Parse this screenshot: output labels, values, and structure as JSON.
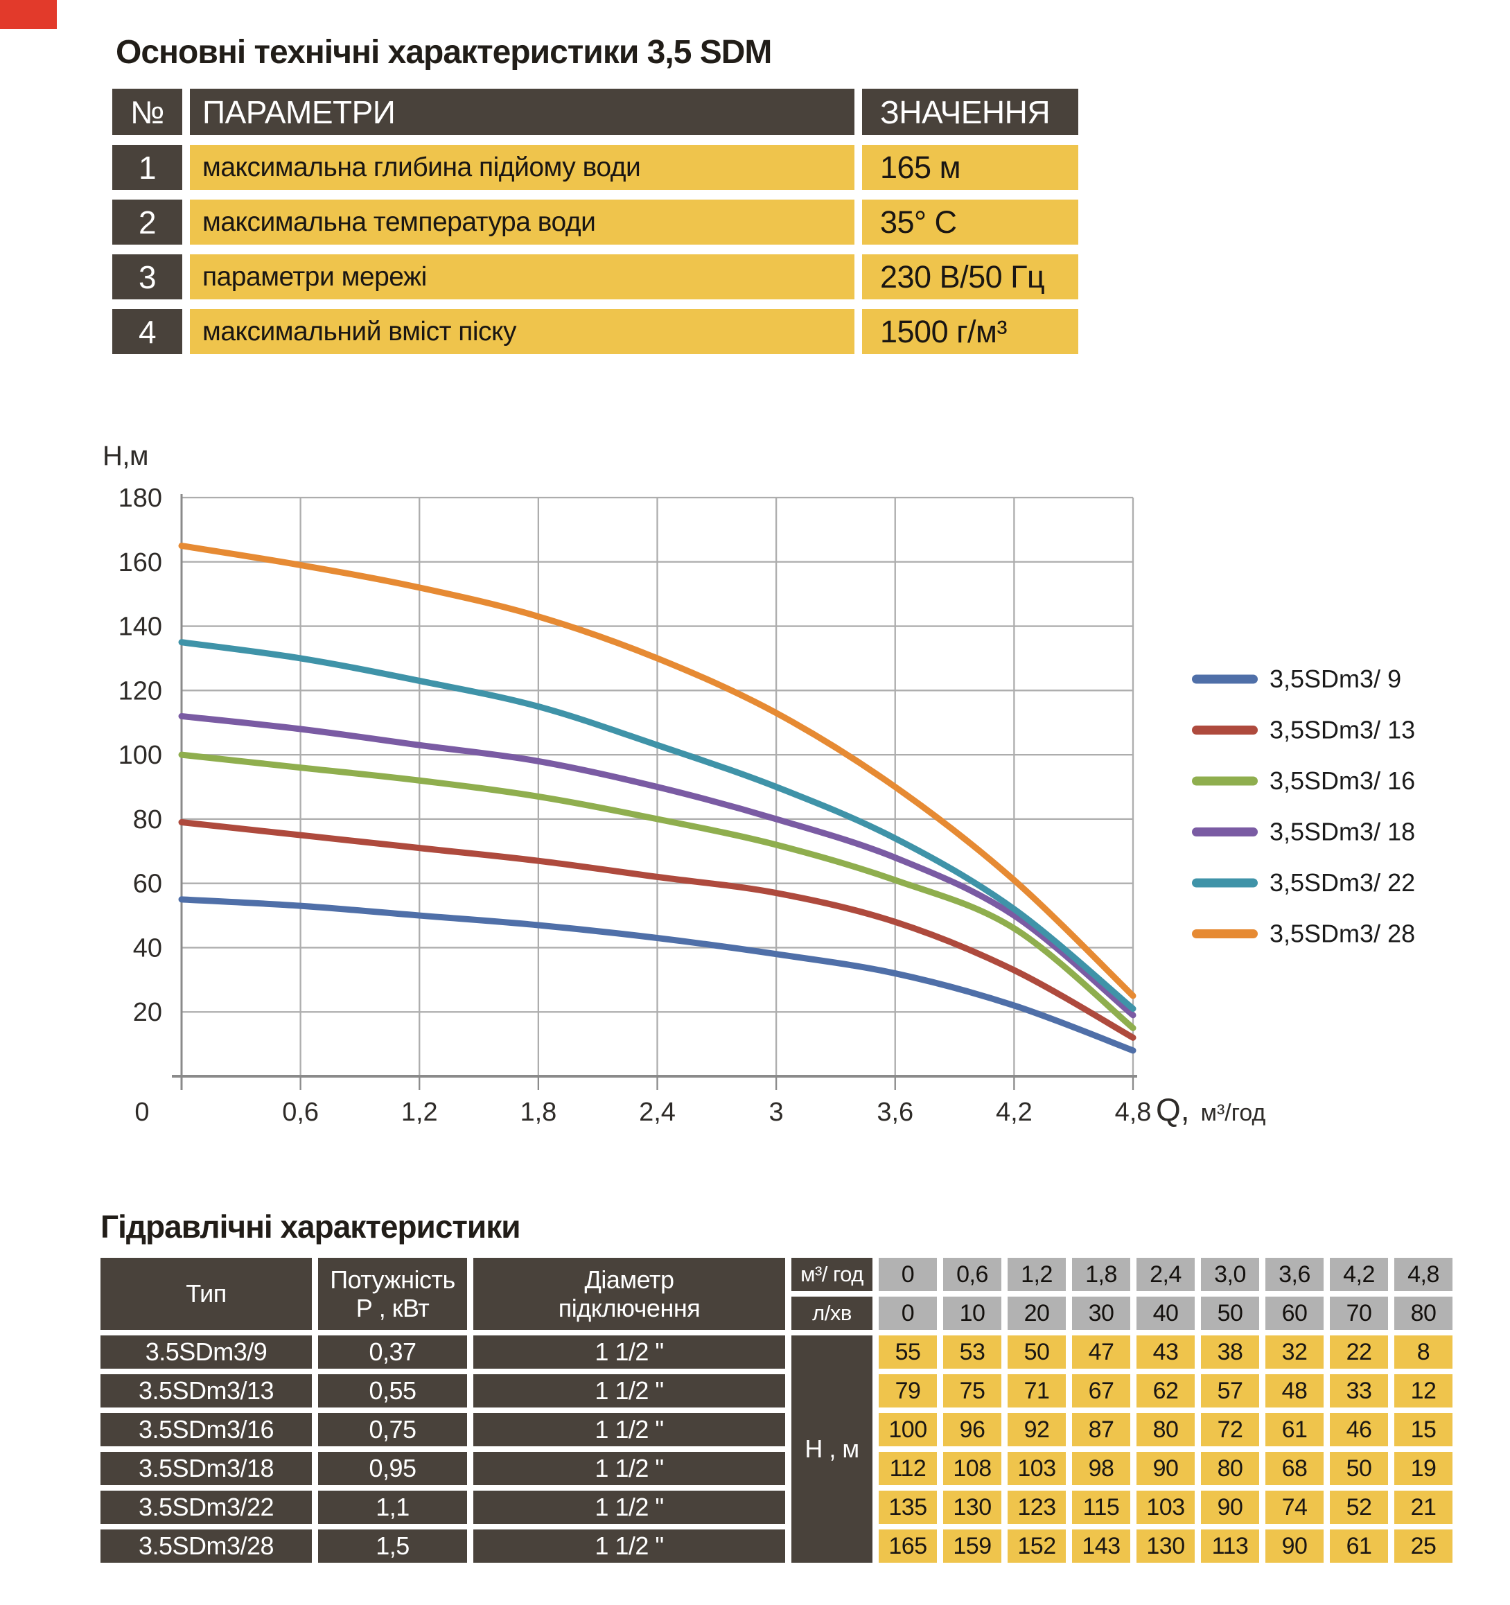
{
  "palette": {
    "corner_red": "#E23A2B",
    "cell_dark": "#49423B",
    "cell_yellow": "#EFC44C",
    "cell_gray": "#B2B2B2",
    "gridline": "#ADADAD",
    "axis": "#8A8A8A"
  },
  "title": "Основні технічні характеристики 3,5 SDM",
  "spec_table": {
    "headers": {
      "num": "№",
      "param": "ПАРАМЕТРИ",
      "value": "ЗНАЧЕННЯ"
    },
    "rows": [
      {
        "num": "1",
        "param": "максимальна глибина підйому води",
        "value": "165 м"
      },
      {
        "num": "2",
        "param": "максимальна температура води",
        "value": "35° С"
      },
      {
        "num": "3",
        "param": "параметри мережі",
        "value": "230 В/50 Гц"
      },
      {
        "num": "4",
        "param": "максимальний вміст піску",
        "value": "1500 г/м³"
      }
    ]
  },
  "chart_data": {
    "type": "line",
    "title": "",
    "ylabel": "Н,м",
    "xlabel": "Q,  м³/год",
    "xlabel_main": "Q,",
    "xlabel_unit": "м³/год",
    "x": [
      0,
      0.6,
      1.2,
      1.8,
      2.4,
      3.0,
      3.6,
      4.2,
      4.8
    ],
    "x_tick_labels": [
      "0",
      "0,6",
      "1,2",
      "1,8",
      "2,4",
      "3",
      "3,6",
      "4,2",
      "4,8"
    ],
    "y_ticks": [
      20,
      40,
      60,
      80,
      100,
      120,
      140,
      160,
      180
    ],
    "xlim": [
      0,
      4.8
    ],
    "ylim": [
      0,
      180
    ],
    "grid": true,
    "legend_position": "right",
    "series": [
      {
        "name": "3,5SDm3/ 9",
        "color": "#4F6FA8",
        "values": [
          55,
          53,
          50,
          47,
          43,
          38,
          32,
          22,
          8
        ]
      },
      {
        "name": "3,5SDm3/ 13",
        "color": "#AE4A3D",
        "values": [
          79,
          75,
          71,
          67,
          62,
          57,
          48,
          33,
          12
        ]
      },
      {
        "name": "3,5SDm3/ 16",
        "color": "#8FAE4E",
        "values": [
          100,
          96,
          92,
          87,
          80,
          72,
          61,
          46,
          15
        ]
      },
      {
        "name": "3,5SDm3/ 18",
        "color": "#7A5BA3",
        "values": [
          112,
          108,
          103,
          98,
          90,
          80,
          68,
          50,
          19
        ]
      },
      {
        "name": "3,5SDm3/ 22",
        "color": "#3F93A8",
        "values": [
          135,
          130,
          123,
          115,
          103,
          90,
          74,
          52,
          21
        ]
      },
      {
        "name": "3,5SDm3/ 28",
        "color": "#E68A33",
        "values": [
          165,
          159,
          152,
          143,
          130,
          113,
          90,
          61,
          25
        ]
      }
    ]
  },
  "hydraulic": {
    "title": "Гідравлічні характеристики",
    "col_headers": {
      "type": "Тип",
      "power_line1": "Потужність",
      "power_line2": "Р , кВт",
      "diameter_line1": "Діаметр",
      "diameter_line2": "підключення",
      "flow_m3": "м³/ год",
      "flow_lmin": "л/хв",
      "head": "Н , м"
    },
    "flow_m3_values": [
      "0",
      "0,6",
      "1,2",
      "1,8",
      "2,4",
      "3,0",
      "3,6",
      "4,2",
      "4,8"
    ],
    "flow_lmin_values": [
      "0",
      "10",
      "20",
      "30",
      "40",
      "50",
      "60",
      "70",
      "80"
    ],
    "rows": [
      {
        "type": "3.5SDm3/9",
        "power": "0,37",
        "diameter": "1 1/2 \"",
        "heads": [
          "55",
          "53",
          "50",
          "47",
          "43",
          "38",
          "32",
          "22",
          "8"
        ]
      },
      {
        "type": "3.5SDm3/13",
        "power": "0,55",
        "diameter": "1 1/2 \"",
        "heads": [
          "79",
          "75",
          "71",
          "67",
          "62",
          "57",
          "48",
          "33",
          "12"
        ]
      },
      {
        "type": "3.5SDm3/16",
        "power": "0,75",
        "diameter": "1 1/2 \"",
        "heads": [
          "100",
          "96",
          "92",
          "87",
          "80",
          "72",
          "61",
          "46",
          "15"
        ]
      },
      {
        "type": "3.5SDm3/18",
        "power": "0,95",
        "diameter": "1 1/2 \"",
        "heads": [
          "112",
          "108",
          "103",
          "98",
          "90",
          "80",
          "68",
          "50",
          "19"
        ]
      },
      {
        "type": "3.5SDm3/22",
        "power": "1,1",
        "diameter": "1 1/2 \"",
        "heads": [
          "135",
          "130",
          "123",
          "115",
          "103",
          "90",
          "74",
          "52",
          "21"
        ]
      },
      {
        "type": "3.5SDm3/28",
        "power": "1,5",
        "diameter": "1 1/2 \"",
        "heads": [
          "165",
          "159",
          "152",
          "143",
          "130",
          "113",
          "90",
          "61",
          "25"
        ]
      }
    ]
  }
}
